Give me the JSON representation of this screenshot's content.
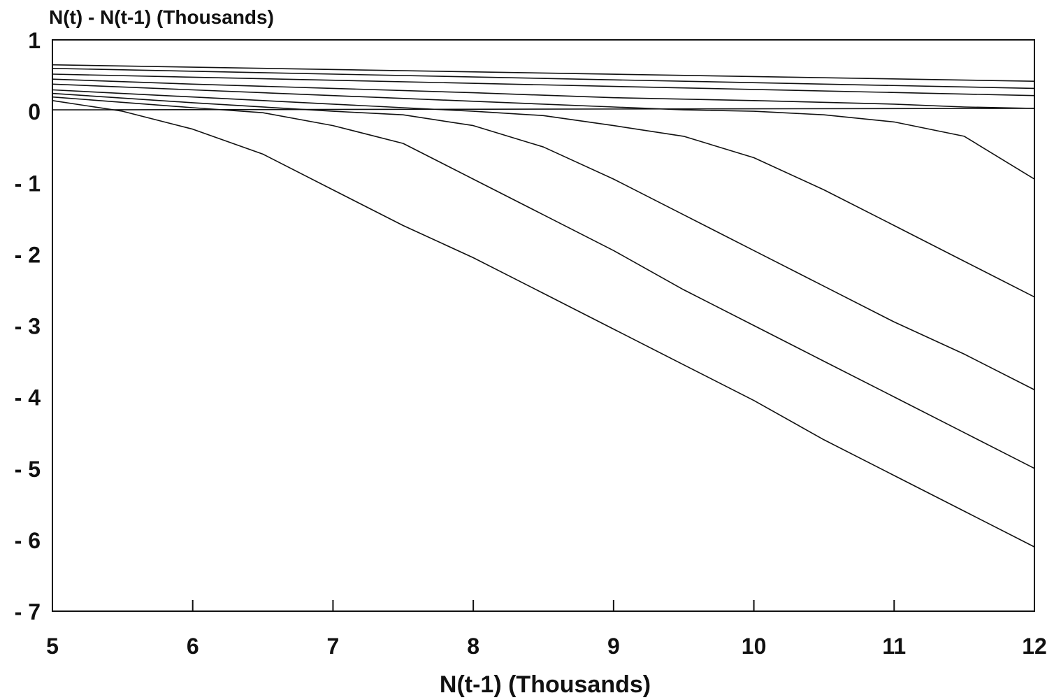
{
  "chart_data": {
    "type": "line",
    "title": "",
    "ylabel": "N(t) - N(t-1) (Thousands)",
    "xlabel": "N(t-1) (Thousands)",
    "xlim": [
      5,
      12
    ],
    "ylim": [
      -7,
      1
    ],
    "x_ticks": [
      5,
      6,
      7,
      8,
      9,
      10,
      11,
      12
    ],
    "y_ticks": [
      1,
      0,
      -1,
      -2,
      -3,
      -4,
      -5,
      -6,
      -7
    ],
    "grid": false,
    "legend": "none",
    "series": [
      {
        "x": [
          5,
          12
        ],
        "y": [
          0.65,
          0.42
        ]
      },
      {
        "x": [
          5,
          12
        ],
        "y": [
          0.6,
          0.32
        ]
      },
      {
        "x": [
          5,
          12
        ],
        "y": [
          0.52,
          0.22
        ]
      },
      {
        "x": [
          5,
          6,
          7,
          8,
          9,
          10,
          11,
          11.5,
          12
        ],
        "y": [
          0.45,
          0.38,
          0.32,
          0.26,
          0.19,
          0.15,
          0.1,
          0.06,
          0.04
        ]
      },
      {
        "x": [
          5,
          12
        ],
        "y": [
          0.02,
          0.04
        ]
      },
      {
        "x": [
          5,
          6,
          7,
          8,
          9,
          9.5,
          10,
          10.5,
          11,
          11.5,
          12
        ],
        "y": [
          0.38,
          0.3,
          0.22,
          0.14,
          0.06,
          0.02,
          0.0,
          -0.05,
          -0.15,
          -0.35,
          -0.95
        ]
      },
      {
        "x": [
          5,
          6,
          7,
          8,
          8.5,
          9,
          9.5,
          10,
          10.5,
          11,
          11.5,
          12
        ],
        "y": [
          0.3,
          0.2,
          0.1,
          0.0,
          -0.06,
          -0.2,
          -0.35,
          -0.65,
          -1.1,
          -1.6,
          -2.1,
          -2.6
        ]
      },
      {
        "x": [
          5,
          6,
          7,
          7.5,
          8,
          8.5,
          9,
          9.5,
          10,
          10.5,
          11,
          11.5,
          12
        ],
        "y": [
          0.25,
          0.12,
          0.0,
          -0.05,
          -0.2,
          -0.5,
          -0.95,
          -1.45,
          -1.95,
          -2.45,
          -2.95,
          -3.4,
          -3.9
        ]
      },
      {
        "x": [
          5,
          6,
          6.5,
          7,
          7.5,
          8,
          8.5,
          9,
          9.5,
          10,
          10.5,
          11,
          11.5,
          12
        ],
        "y": [
          0.2,
          0.05,
          -0.02,
          -0.2,
          -0.45,
          -0.95,
          -1.45,
          -1.95,
          -2.5,
          -3.0,
          -3.5,
          -4.0,
          -4.5,
          -5.0
        ]
      },
      {
        "x": [
          5,
          5.5,
          6,
          6.5,
          7,
          7.5,
          8,
          8.5,
          9,
          9.5,
          10,
          10.5,
          11,
          11.5,
          12
        ],
        "y": [
          0.15,
          0.0,
          -0.25,
          -0.6,
          -1.1,
          -1.6,
          -2.05,
          -2.55,
          -3.05,
          -3.55,
          -4.05,
          -4.6,
          -5.1,
          -5.6,
          -6.1
        ]
      }
    ]
  }
}
